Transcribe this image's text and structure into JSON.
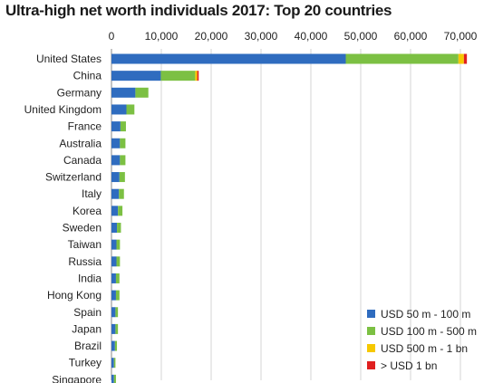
{
  "chart_data": {
    "type": "bar",
    "orientation": "horizontal",
    "stacked": true,
    "title": "Ultra-high net worth individuals 2017: Top 20 countries",
    "categories": [
      "United States",
      "China",
      "Germany",
      "United Kingdom",
      "France",
      "Australia",
      "Canada",
      "Switzerland",
      "Italy",
      "Korea",
      "Sweden",
      "Taiwan",
      "Russia",
      "India",
      "Hong Kong",
      "Spain",
      "Japan",
      "Brazil",
      "Turkey",
      "Singapore"
    ],
    "series": [
      {
        "name": "USD 50 m - 100 m",
        "color": "#2f6cbf",
        "values": [
          47000,
          9900,
          4800,
          3000,
          1800,
          1700,
          1700,
          1600,
          1500,
          1300,
          1100,
          1000,
          1000,
          900,
          900,
          800,
          800,
          700,
          500,
          500
        ]
      },
      {
        "name": "USD 100 m - 500 m",
        "color": "#7cc043",
        "values": [
          22600,
          6900,
          2600,
          1600,
          1100,
          1100,
          1100,
          1100,
          1000,
          900,
          800,
          700,
          700,
          700,
          700,
          500,
          500,
          400,
          300,
          400
        ]
      },
      {
        "name": "USD 500 m - 1 bn",
        "color": "#f6c800",
        "values": [
          1100,
          400,
          0,
          0,
          0,
          0,
          0,
          0,
          0,
          0,
          0,
          0,
          0,
          0,
          0,
          0,
          0,
          0,
          0,
          0
        ]
      },
      {
        "name": "> USD 1 bn",
        "color": "#e02020",
        "values": [
          600,
          300,
          0,
          0,
          0,
          0,
          0,
          0,
          0,
          0,
          0,
          0,
          0,
          0,
          0,
          0,
          0,
          0,
          0,
          0
        ]
      }
    ],
    "xlim": [
      0,
      72000
    ],
    "xticks": [
      0,
      10000,
      20000,
      30000,
      40000,
      50000,
      60000,
      70000
    ],
    "xtick_labels": [
      "0",
      "10,000",
      "20,000",
      "30,000",
      "40,000",
      "50,000",
      "60,000",
      "70,000"
    ],
    "axis_position": "top",
    "grid": true,
    "legend_position": "bottom-right"
  }
}
